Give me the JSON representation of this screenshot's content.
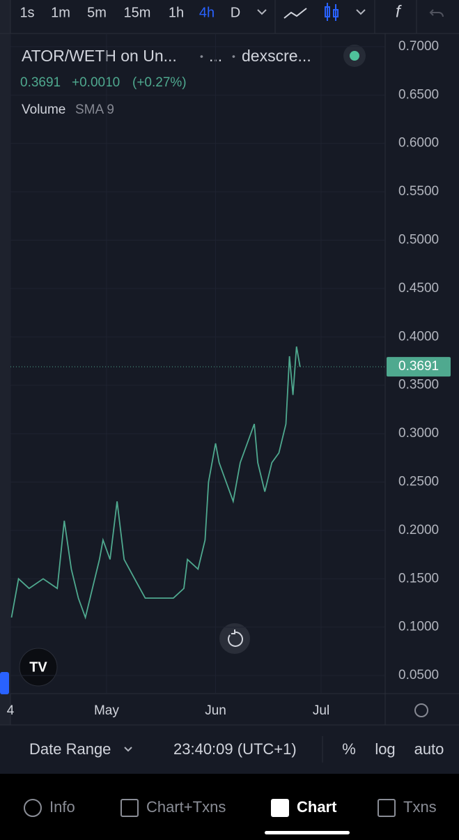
{
  "toolbar": {
    "intervals": [
      "1s",
      "1m",
      "5m",
      "15m",
      "1h",
      "4h",
      "D"
    ],
    "active": "4h"
  },
  "legend": {
    "symbol": "ATOR/WETH on Un...",
    "sep1": "•",
    "exchange": "...",
    "sep2": "•",
    "source": "dexscre...",
    "close": 0.3691,
    "change": "+0.0010",
    "change_pct": "(+0.27%)",
    "indicator": "Volume",
    "indicator_param": "SMA 9"
  },
  "chart_data": {
    "type": "line",
    "color": "#4fa98f",
    "grid": true,
    "x": [
      4,
      6,
      9,
      13,
      17,
      19,
      21,
      23,
      25,
      27,
      29,
      30,
      32,
      34,
      36,
      39,
      42,
      46,
      50,
      53,
      54,
      57,
      59,
      60,
      62,
      63,
      65,
      67,
      69,
      71,
      73,
      74,
      76,
      78,
      80,
      82,
      83,
      84,
      85,
      86
    ],
    "values": [
      0.11,
      0.15,
      0.14,
      0.15,
      0.14,
      0.21,
      0.16,
      0.13,
      0.11,
      0.14,
      0.17,
      0.19,
      0.17,
      0.23,
      0.17,
      0.15,
      0.13,
      0.13,
      0.13,
      0.14,
      0.17,
      0.16,
      0.19,
      0.25,
      0.29,
      0.27,
      0.25,
      0.23,
      0.27,
      0.29,
      0.31,
      0.27,
      0.24,
      0.27,
      0.28,
      0.31,
      0.38,
      0.34,
      0.39,
      0.3691
    ],
    "xlim": [
      3.7,
      110.2
    ],
    "xticks": [
      {
        "value": 3.7,
        "label": "4"
      },
      {
        "value": 31,
        "label": "May"
      },
      {
        "value": 62,
        "label": "Jun"
      },
      {
        "value": 92,
        "label": "Jul"
      }
    ],
    "ylim": [
      0.0313,
      0.723
    ],
    "yticks": [
      {
        "value": 0.05,
        "label": "0.0500"
      },
      {
        "value": 0.1,
        "label": "0.1000"
      },
      {
        "value": 0.15,
        "label": "0.1500"
      },
      {
        "value": 0.2,
        "label": "0.2000"
      },
      {
        "value": 0.25,
        "label": "0.2500"
      },
      {
        "value": 0.3,
        "label": "0.3000"
      },
      {
        "value": 0.35,
        "label": "0.3500"
      },
      {
        "value": 0.4,
        "label": "0.4000"
      },
      {
        "value": 0.45,
        "label": "0.4500"
      },
      {
        "value": 0.5,
        "label": "0.5000"
      },
      {
        "value": 0.55,
        "label": "0.5500"
      },
      {
        "value": 0.6,
        "label": "0.6000"
      },
      {
        "value": 0.65,
        "label": "0.6500"
      },
      {
        "value": 0.7,
        "label": "0.7000"
      }
    ],
    "last_price": 0.3691
  },
  "bottom_bar": {
    "date_range": "Date Range",
    "time": "23:40:09 (UTC+1)",
    "percent": "%",
    "log": "log",
    "auto": "auto"
  },
  "tabs": [
    "Info",
    "Chart+Txns",
    "Chart",
    "Txns"
  ],
  "active_tab": "Chart"
}
